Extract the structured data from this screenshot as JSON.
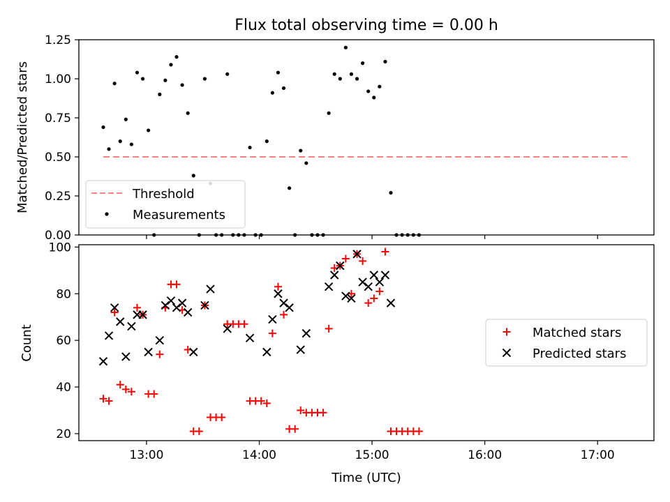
{
  "chart_data": [
    {
      "type": "scatter",
      "title": "Flux total observing time = 0.00 h",
      "xlabel": "",
      "ylabel": "Matched/Predicted stars",
      "xlim": [
        "12:24",
        "17:30"
      ],
      "ylim": [
        0,
        1.25
      ],
      "x_ticks": [
        "13:00",
        "14:00",
        "15:00",
        "16:00",
        "17:00"
      ],
      "y_ticks": [
        "0.00",
        "0.25",
        "0.50",
        "0.75",
        "1.00",
        "1.25"
      ],
      "legend": {
        "position": "lower-left"
      },
      "threshold": {
        "name": "Threshold",
        "value": 0.5,
        "x_start": "12:37",
        "x_end": "17:17",
        "color": "#ff8080",
        "style": "dashed"
      },
      "series": [
        {
          "name": "Measurements",
          "color": "#000000",
          "marker": "dot",
          "points": [
            [
              "12:37",
              0.69
            ],
            [
              "12:40",
              0.55
            ],
            [
              "12:43",
              0.97
            ],
            [
              "12:46",
              0.6
            ],
            [
              "12:49",
              0.74
            ],
            [
              "12:52",
              0.58
            ],
            [
              "12:55",
              1.04
            ],
            [
              "12:58",
              1.0
            ],
            [
              "13:01",
              0.67
            ],
            [
              "13:04",
              0.0
            ],
            [
              "13:07",
              0.9
            ],
            [
              "13:10",
              0.99
            ],
            [
              "13:13",
              1.09
            ],
            [
              "13:16",
              1.14
            ],
            [
              "13:19",
              0.96
            ],
            [
              "13:22",
              0.78
            ],
            [
              "13:25",
              0.38
            ],
            [
              "13:28",
              0.0
            ],
            [
              "13:31",
              1.0
            ],
            [
              "13:34",
              0.33
            ],
            [
              "13:37",
              0.0
            ],
            [
              "13:40",
              0.0
            ],
            [
              "13:43",
              1.03
            ],
            [
              "13:46",
              0.0
            ],
            [
              "13:49",
              0.0
            ],
            [
              "13:52",
              0.0
            ],
            [
              "13:55",
              0.56
            ],
            [
              "13:58",
              0.0
            ],
            [
              "14:01",
              0.0
            ],
            [
              "14:04",
              0.6
            ],
            [
              "14:07",
              0.91
            ],
            [
              "14:10",
              1.04
            ],
            [
              "14:13",
              0.94
            ],
            [
              "14:16",
              0.3
            ],
            [
              "14:19",
              0.0
            ],
            [
              "14:22",
              0.54
            ],
            [
              "14:25",
              0.46
            ],
            [
              "14:28",
              0.0
            ],
            [
              "14:31",
              0.0
            ],
            [
              "14:34",
              0.0
            ],
            [
              "14:37",
              0.78
            ],
            [
              "14:40",
              1.03
            ],
            [
              "14:43",
              1.0
            ],
            [
              "14:46",
              1.2
            ],
            [
              "14:49",
              1.03
            ],
            [
              "14:52",
              1.0
            ],
            [
              "14:55",
              1.1
            ],
            [
              "14:58",
              0.92
            ],
            [
              "15:01",
              0.88
            ],
            [
              "15:04",
              0.95
            ],
            [
              "15:07",
              1.11
            ],
            [
              "15:10",
              0.27
            ],
            [
              "15:13",
              0.0
            ],
            [
              "15:16",
              0.0
            ],
            [
              "15:19",
              0.0
            ],
            [
              "15:22",
              0.0
            ],
            [
              "15:25",
              0.0
            ]
          ]
        }
      ]
    },
    {
      "type": "scatter",
      "title": "",
      "xlabel": "Time (UTC)",
      "ylabel": "Count",
      "xlim": [
        "12:24",
        "17:30"
      ],
      "ylim": [
        17,
        101
      ],
      "x_ticks": [
        "13:00",
        "14:00",
        "15:00",
        "16:00",
        "17:00"
      ],
      "y_ticks": [
        "20",
        "40",
        "60",
        "80",
        "100"
      ],
      "legend": {
        "position": "right"
      },
      "series": [
        {
          "name": "Matched stars",
          "color": "#ff0000",
          "marker": "plus",
          "points": [
            [
              "12:37",
              35
            ],
            [
              "12:40",
              34
            ],
            [
              "12:43",
              72
            ],
            [
              "12:46",
              41
            ],
            [
              "12:49",
              39
            ],
            [
              "12:52",
              38
            ],
            [
              "12:55",
              74
            ],
            [
              "12:58",
              71
            ],
            [
              "13:01",
              37
            ],
            [
              "13:04",
              37
            ],
            [
              "13:07",
              54
            ],
            [
              "13:10",
              74
            ],
            [
              "13:13",
              84
            ],
            [
              "13:16",
              84
            ],
            [
              "13:19",
              73
            ],
            [
              "13:22",
              56
            ],
            [
              "13:25",
              21
            ],
            [
              "13:28",
              21
            ],
            [
              "13:31",
              75
            ],
            [
              "13:34",
              27
            ],
            [
              "13:37",
              27
            ],
            [
              "13:40",
              27
            ],
            [
              "13:43",
              67
            ],
            [
              "13:46",
              67
            ],
            [
              "13:49",
              67
            ],
            [
              "13:52",
              67
            ],
            [
              "13:55",
              34
            ],
            [
              "13:58",
              34
            ],
            [
              "14:01",
              34
            ],
            [
              "14:04",
              33
            ],
            [
              "14:07",
              63
            ],
            [
              "14:10",
              83
            ],
            [
              "14:13",
              71
            ],
            [
              "14:16",
              22
            ],
            [
              "14:19",
              22
            ],
            [
              "14:22",
              30
            ],
            [
              "14:25",
              29
            ],
            [
              "14:28",
              29
            ],
            [
              "14:31",
              29
            ],
            [
              "14:34",
              29
            ],
            [
              "14:37",
              65
            ],
            [
              "14:40",
              91
            ],
            [
              "14:43",
              92
            ],
            [
              "14:46",
              95
            ],
            [
              "14:49",
              80
            ],
            [
              "14:52",
              97
            ],
            [
              "14:55",
              94
            ],
            [
              "14:58",
              76
            ],
            [
              "15:01",
              78
            ],
            [
              "15:04",
              81
            ],
            [
              "15:07",
              98
            ],
            [
              "15:10",
              21
            ],
            [
              "15:13",
              21
            ],
            [
              "15:16",
              21
            ],
            [
              "15:19",
              21
            ],
            [
              "15:22",
              21
            ],
            [
              "15:25",
              21
            ]
          ]
        },
        {
          "name": "Predicted stars",
          "color": "#000000",
          "marker": "x",
          "points": [
            [
              "12:37",
              51
            ],
            [
              "12:40",
              62
            ],
            [
              "12:43",
              74
            ],
            [
              "12:46",
              68
            ],
            [
              "12:49",
              53
            ],
            [
              "12:52",
              66
            ],
            [
              "12:55",
              71
            ],
            [
              "12:58",
              71
            ],
            [
              "13:01",
              55
            ],
            [
              "13:07",
              60
            ],
            [
              "13:10",
              75
            ],
            [
              "13:13",
              77
            ],
            [
              "13:16",
              74
            ],
            [
              "13:19",
              76
            ],
            [
              "13:22",
              72
            ],
            [
              "13:25",
              55
            ],
            [
              "13:31",
              75
            ],
            [
              "13:34",
              82
            ],
            [
              "13:43",
              65
            ],
            [
              "13:55",
              61
            ],
            [
              "14:04",
              55
            ],
            [
              "14:07",
              69
            ],
            [
              "14:10",
              80
            ],
            [
              "14:13",
              76
            ],
            [
              "14:16",
              74
            ],
            [
              "14:22",
              56
            ],
            [
              "14:25",
              63
            ],
            [
              "14:37",
              83
            ],
            [
              "14:40",
              88
            ],
            [
              "14:43",
              92
            ],
            [
              "14:46",
              79
            ],
            [
              "14:49",
              78
            ],
            [
              "14:52",
              97
            ],
            [
              "14:55",
              85
            ],
            [
              "14:58",
              83
            ],
            [
              "15:01",
              88
            ],
            [
              "15:04",
              85
            ],
            [
              "15:07",
              88
            ],
            [
              "15:10",
              76
            ]
          ]
        }
      ]
    }
  ]
}
